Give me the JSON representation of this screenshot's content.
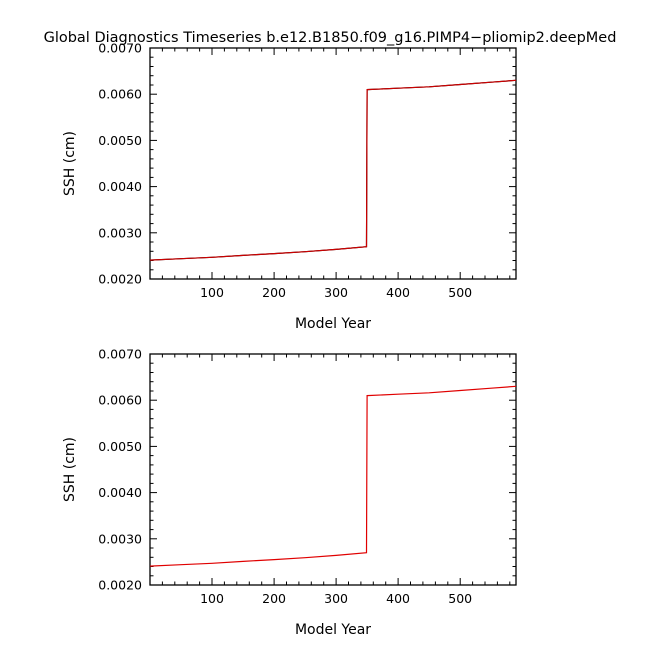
{
  "figure": {
    "title": "Global Diagnostics Timeseries b.e12.B1850.f09_g16.PIMP4−pliomip2.deepMed"
  },
  "chart_data": [
    {
      "type": "line",
      "title": "",
      "xlabel": "Model Year",
      "ylabel": "SSH (cm)",
      "xlim": [
        0,
        590
      ],
      "ylim": [
        0.002,
        0.007
      ],
      "x_ticks": [
        100,
        200,
        300,
        400,
        500
      ],
      "x_tick_labels": [
        "100",
        "200",
        "300",
        "400",
        "500"
      ],
      "y_ticks": [
        0.002,
        0.003,
        0.004,
        0.005,
        0.006,
        0.007
      ],
      "y_tick_labels": [
        "0.0020",
        "0.0030",
        "0.0040",
        "0.0050",
        "0.0060",
        "0.0070"
      ],
      "grid": false,
      "series": [
        {
          "color": "#000000",
          "x": [
            0,
            50,
            100,
            150,
            200,
            250,
            300,
            349,
            350,
            400,
            450,
            500,
            550,
            590
          ],
          "y": [
            0.00241,
            0.00244,
            0.00247,
            0.00251,
            0.00255,
            0.00259,
            0.00264,
            0.0027,
            0.0061,
            0.00613,
            0.00616,
            0.00621,
            0.00626,
            0.0063
          ]
        },
        {
          "color": "#cc0000",
          "x": [
            0,
            50,
            100,
            150,
            200,
            250,
            300,
            349,
            350,
            400,
            450,
            500,
            550,
            590
          ],
          "y": [
            0.00241,
            0.00244,
            0.00247,
            0.00251,
            0.00255,
            0.00259,
            0.00264,
            0.0027,
            0.0061,
            0.00613,
            0.00616,
            0.00621,
            0.00626,
            0.0063
          ]
        }
      ]
    },
    {
      "type": "line",
      "title": "",
      "xlabel": "Model Year",
      "ylabel": "SSH (cm)",
      "xlim": [
        0,
        590
      ],
      "ylim": [
        0.002,
        0.007
      ],
      "x_ticks": [
        100,
        200,
        300,
        400,
        500
      ],
      "x_tick_labels": [
        "100",
        "200",
        "300",
        "400",
        "500"
      ],
      "y_ticks": [
        0.002,
        0.003,
        0.004,
        0.005,
        0.006,
        0.007
      ],
      "y_tick_labels": [
        "0.0020",
        "0.0030",
        "0.0040",
        "0.0050",
        "0.0060",
        "0.0070"
      ],
      "grid": false,
      "series": [
        {
          "color": "#e00000",
          "x": [
            0,
            50,
            100,
            150,
            200,
            250,
            300,
            349,
            350,
            400,
            450,
            500,
            550,
            590
          ],
          "y": [
            0.00241,
            0.00244,
            0.00247,
            0.00251,
            0.00255,
            0.00259,
            0.00264,
            0.0027,
            0.0061,
            0.00613,
            0.00616,
            0.00621,
            0.00626,
            0.0063
          ]
        }
      ]
    }
  ]
}
